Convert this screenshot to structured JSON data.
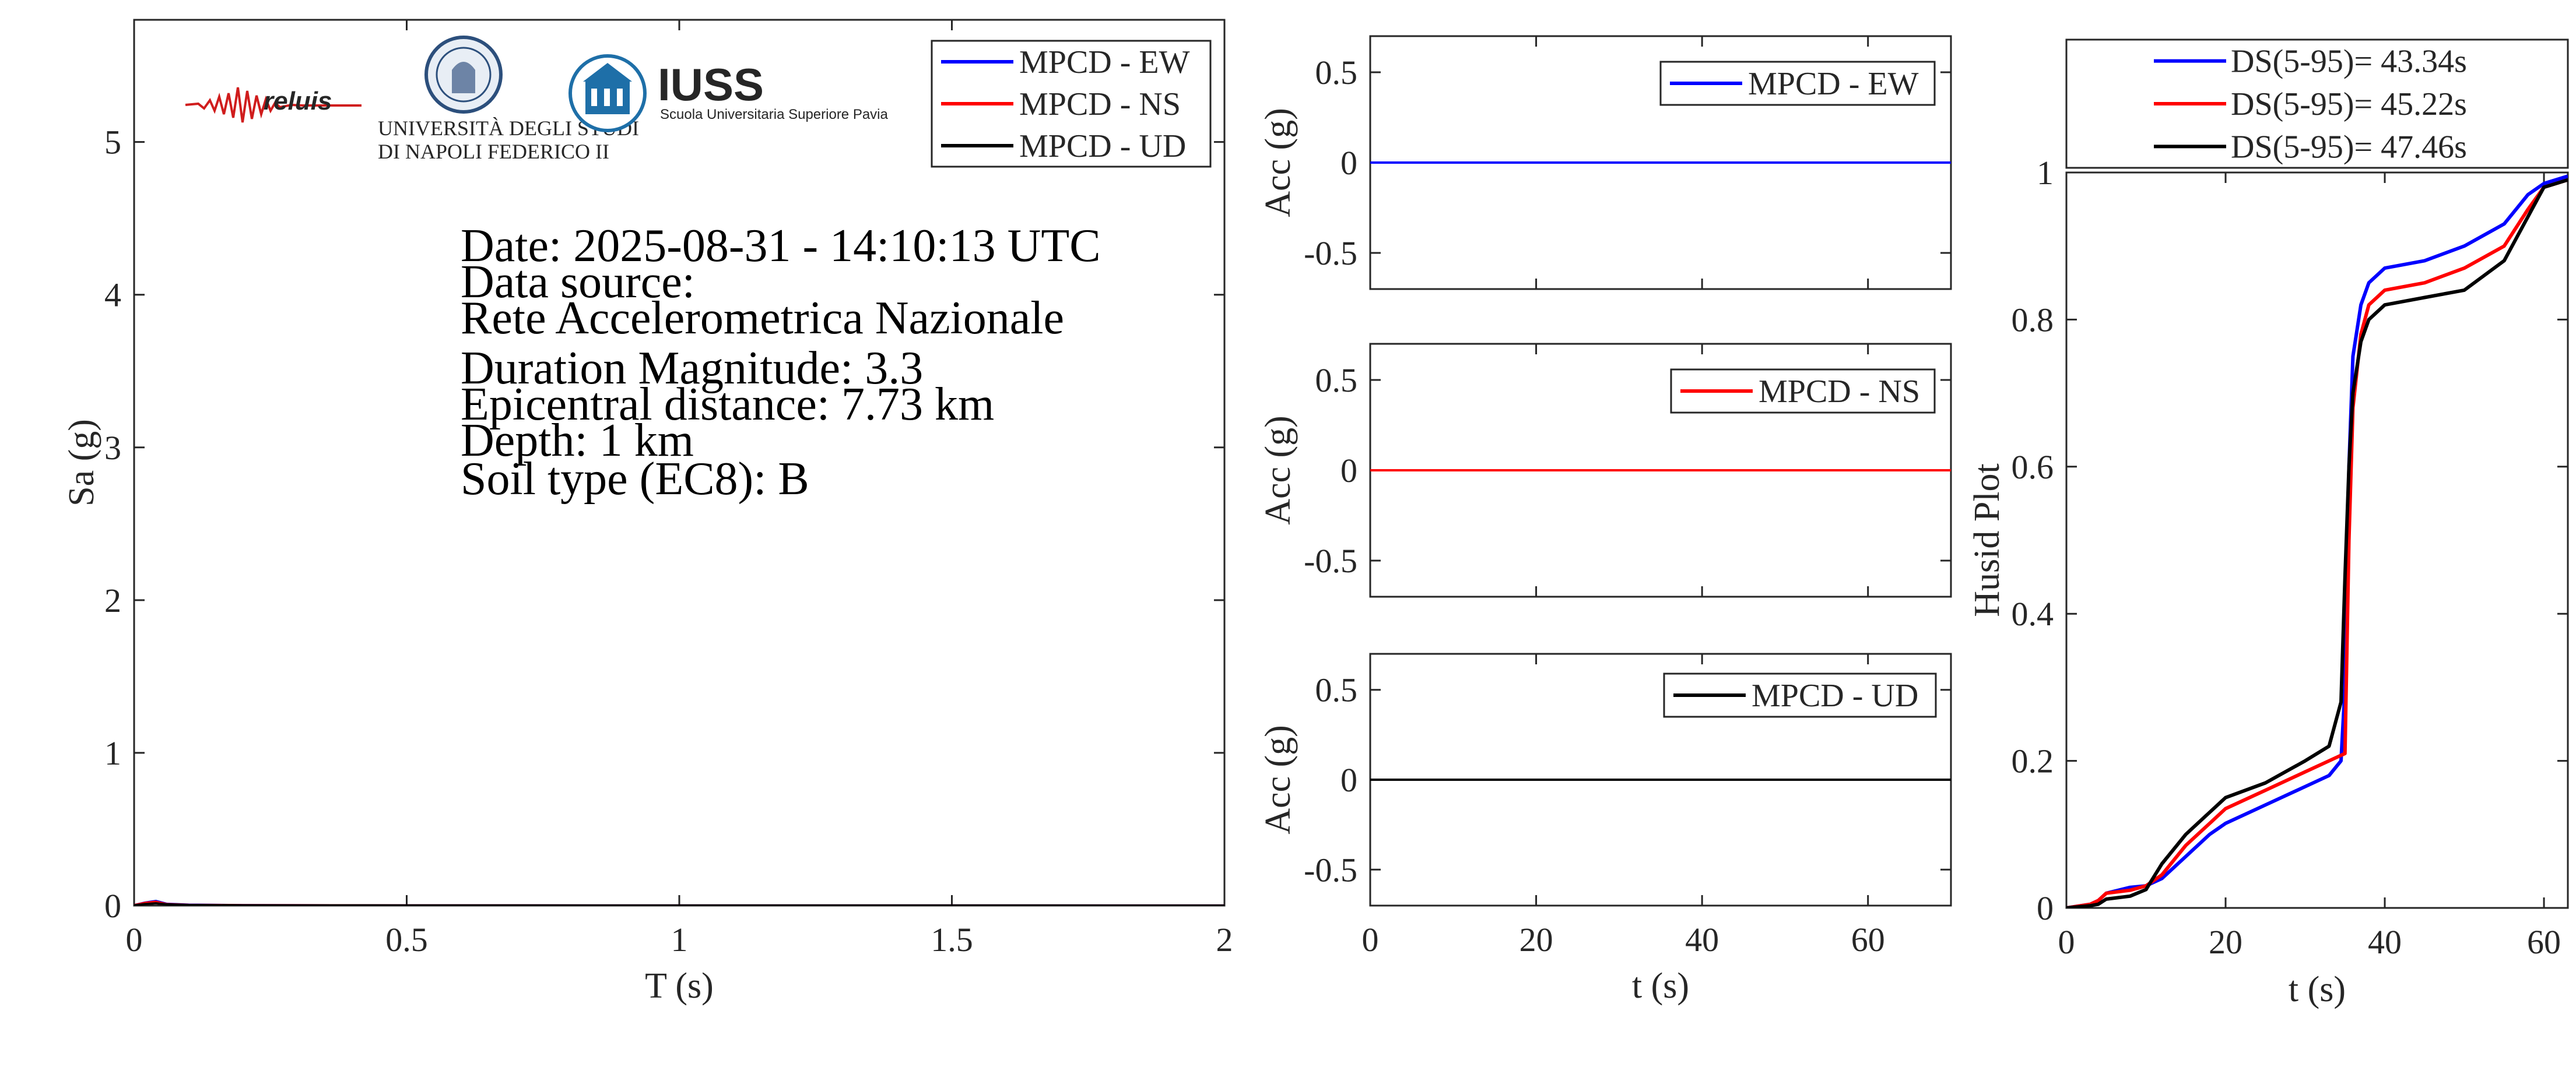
{
  "colors": {
    "ew": "#0000ff",
    "ns": "#ff0000",
    "ud": "#000000",
    "axis": "#262626"
  },
  "logos": {
    "reluis": "reluis",
    "unina_line1": "UNIVERSITÀ DEGLI STUDI",
    "unina_line2": "DI NAPOLI FEDERICO II",
    "iuss": "IUSS",
    "iuss_sub": "Scuola Universitaria Superiore Pavia"
  },
  "info": {
    "date": "Date: 2025-08-31 - 14:10:13 UTC",
    "source_label": "Data source:",
    "source": "Rete Accelerometrica Nazionale",
    "magnitude": "Duration Magnitude: 3.3",
    "distance": "Epicentral distance: 7.73 km",
    "depth": "Depth: 1 km",
    "soil": "Soil type (EC8): B"
  },
  "chart_data": [
    {
      "type": "line",
      "xlabel": "T (s)",
      "ylabel": "Sa (g)",
      "xlim": [
        0,
        2
      ],
      "ylim": [
        0,
        5.8
      ],
      "xticks": [
        0,
        0.5,
        1,
        1.5,
        2
      ],
      "xticklabels": [
        "0",
        "0.5",
        "1",
        "1.5",
        "2"
      ],
      "yticks": [
        0,
        1,
        2,
        3,
        4,
        5
      ],
      "yticklabels": [
        "0",
        "1",
        "2",
        "3",
        "4",
        "5"
      ],
      "legend_location": "top-right",
      "series": [
        {
          "name": "MPCD - EW",
          "color": "#0000ff",
          "x": [
            0,
            0.02,
            0.04,
            0.06,
            0.1,
            0.2,
            0.5,
            1,
            1.5,
            2
          ],
          "y": [
            0.003,
            0.02,
            0.03,
            0.012,
            0.006,
            0.003,
            0.001,
            0.0005,
            0.0003,
            0.0002
          ]
        },
        {
          "name": "MPCD - NS",
          "color": "#ff0000",
          "x": [
            0,
            0.02,
            0.04,
            0.06,
            0.1,
            0.2,
            0.5,
            1,
            1.5,
            2
          ],
          "y": [
            0.003,
            0.018,
            0.025,
            0.01,
            0.005,
            0.003,
            0.001,
            0.0005,
            0.0003,
            0.0002
          ]
        },
        {
          "name": "MPCD - UD",
          "color": "#000000",
          "x": [
            0,
            0.02,
            0.04,
            0.06,
            0.1,
            0.2,
            0.5,
            1,
            1.5,
            2
          ],
          "y": [
            0.002,
            0.01,
            0.015,
            0.008,
            0.004,
            0.002,
            0.001,
            0.0004,
            0.0002,
            0.0001
          ]
        }
      ]
    },
    {
      "type": "line",
      "xlabel": "",
      "ylabel": "Acc (g)",
      "xlim": [
        0,
        70
      ],
      "ylim": [
        -0.7,
        0.7
      ],
      "xticks": [
        0,
        20,
        40,
        60
      ],
      "xticklabels": [
        "",
        "",
        "",
        ""
      ],
      "yticks": [
        -0.5,
        0,
        0.5
      ],
      "yticklabels": [
        "-0.5",
        "0",
        "0.5"
      ],
      "legend_location": "top-right",
      "series": [
        {
          "name": "MPCD - EW",
          "color": "#0000ff",
          "x": [
            0,
            70
          ],
          "y": [
            0,
            0
          ]
        }
      ]
    },
    {
      "type": "line",
      "xlabel": "",
      "ylabel": "Acc (g)",
      "xlim": [
        0,
        70
      ],
      "ylim": [
        -0.7,
        0.7
      ],
      "xticks": [
        0,
        20,
        40,
        60
      ],
      "xticklabels": [
        "",
        "",
        "",
        ""
      ],
      "yticks": [
        -0.5,
        0,
        0.5
      ],
      "yticklabels": [
        "-0.5",
        "0",
        "0.5"
      ],
      "legend_location": "top-right",
      "series": [
        {
          "name": "MPCD - NS",
          "color": "#ff0000",
          "x": [
            0,
            70
          ],
          "y": [
            0,
            0
          ]
        }
      ]
    },
    {
      "type": "line",
      "xlabel": "t (s)",
      "ylabel": "Acc (g)",
      "xlim": [
        0,
        70
      ],
      "ylim": [
        -0.7,
        0.7
      ],
      "xticks": [
        0,
        20,
        40,
        60
      ],
      "xticklabels": [
        "0",
        "20",
        "40",
        "60"
      ],
      "yticks": [
        -0.5,
        0,
        0.5
      ],
      "yticklabels": [
        "-0.5",
        "0",
        "0.5"
      ],
      "legend_location": "top-right",
      "series": [
        {
          "name": "MPCD - UD",
          "color": "#000000",
          "x": [
            0,
            70
          ],
          "y": [
            0,
            0
          ]
        }
      ]
    },
    {
      "type": "line",
      "xlabel": "t (s)",
      "ylabel": "Husid Plot",
      "xlim": [
        0,
        63
      ],
      "ylim": [
        0,
        1
      ],
      "xticks": [
        0,
        20,
        40,
        60
      ],
      "xticklabels": [
        "0",
        "20",
        "40",
        "60"
      ],
      "yticks": [
        0,
        0.2,
        0.4,
        0.6,
        0.8,
        1
      ],
      "yticklabels": [
        "0",
        "0.2",
        "0.4",
        "0.6",
        "0.8",
        "1"
      ],
      "legend_location": "outside-top",
      "series": [
        {
          "name": "DS(5-95)= 43.34s",
          "color": "#0000ff",
          "x": [
            0,
            3,
            4,
            5,
            8,
            10,
            12,
            15,
            18,
            20,
            25,
            30,
            33,
            34.5,
            35,
            35.5,
            36,
            37,
            38,
            40,
            45,
            50,
            55,
            58,
            60,
            63
          ],
          "y": [
            0,
            0.005,
            0.01,
            0.02,
            0.028,
            0.03,
            0.04,
            0.07,
            0.1,
            0.115,
            0.14,
            0.165,
            0.18,
            0.2,
            0.3,
            0.6,
            0.75,
            0.82,
            0.85,
            0.87,
            0.88,
            0.9,
            0.93,
            0.97,
            0.985,
            0.995
          ]
        },
        {
          "name": "DS(5-95)= 45.22s",
          "color": "#ff0000",
          "x": [
            0,
            3,
            4,
            5,
            8,
            10,
            12,
            15,
            18,
            20,
            25,
            30,
            34,
            35,
            35.5,
            36,
            37,
            38,
            40,
            45,
            50,
            55,
            58,
            60,
            63
          ],
          "y": [
            0,
            0.005,
            0.01,
            0.02,
            0.024,
            0.03,
            0.045,
            0.085,
            0.115,
            0.135,
            0.16,
            0.185,
            0.205,
            0.21,
            0.5,
            0.68,
            0.78,
            0.82,
            0.84,
            0.85,
            0.87,
            0.9,
            0.95,
            0.98,
            0.99
          ]
        },
        {
          "name": "DS(5-95)= 47.46s",
          "color": "#000000",
          "x": [
            0,
            3,
            4,
            5,
            8,
            10,
            12,
            15,
            18,
            20,
            25,
            30,
            33,
            34.5,
            35,
            35.5,
            36,
            37,
            38,
            40,
            45,
            50,
            55,
            58,
            60,
            63
          ],
          "y": [
            0,
            0.003,
            0.005,
            0.012,
            0.016,
            0.025,
            0.06,
            0.1,
            0.13,
            0.15,
            0.17,
            0.2,
            0.22,
            0.28,
            0.45,
            0.6,
            0.7,
            0.77,
            0.8,
            0.82,
            0.83,
            0.84,
            0.88,
            0.94,
            0.98,
            0.99
          ]
        }
      ]
    }
  ]
}
